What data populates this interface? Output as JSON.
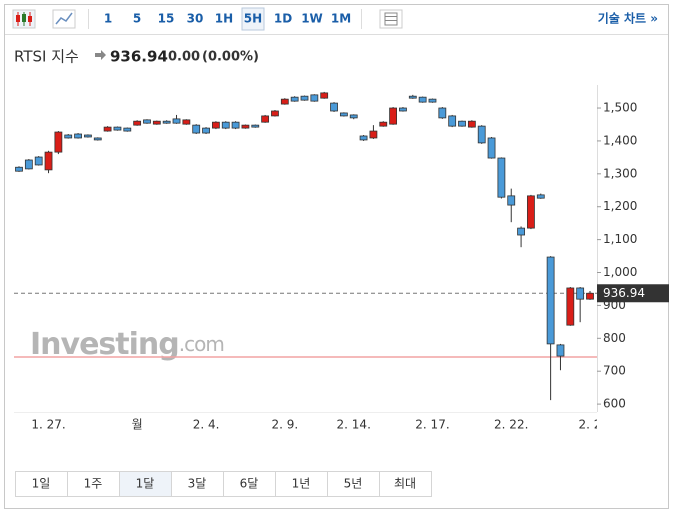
{
  "toolbar": {
    "intervals": [
      "1",
      "5",
      "15",
      "30",
      "1H",
      "5H",
      "1D",
      "1W",
      "1M"
    ],
    "selected": "5H",
    "link": "기술 차트 »"
  },
  "header": {
    "name": "RTSI 지수",
    "change": "0.00",
    "change_percent": "(0.00%)"
  },
  "watermark": [
    "Investing",
    ".com"
  ],
  "ranges": {
    "items": [
      "1일",
      "1주",
      "1달",
      "3달",
      "6달",
      "1년",
      "5년",
      "최대"
    ],
    "selected": "1달"
  },
  "chart_data": {
    "type": "candlestick",
    "categories": [
      null,
      null,
      null,
      "1. 27.",
      null,
      null,
      null,
      null,
      null,
      null,
      null,
      null,
      "월",
      null,
      null,
      null,
      null,
      null,
      null,
      "2. 4.",
      null,
      null,
      null,
      null,
      null,
      null,
      null,
      "2. 9.",
      null,
      null,
      null,
      null,
      null,
      null,
      "2. 14.",
      null,
      null,
      null,
      null,
      null,
      null,
      null,
      "2. 17.",
      null,
      null,
      null,
      null,
      null,
      null,
      null,
      "2. 22.",
      null,
      null,
      null,
      null,
      null,
      null,
      null,
      "2. 2"
    ],
    "open": [
      1320,
      1342,
      1351,
      1312,
      1366,
      1418,
      1421,
      1418,
      1409,
      1430,
      1442,
      1439,
      1448,
      1464,
      1451,
      1460,
      1467,
      1451,
      1448,
      1439,
      1439,
      1457,
      1457,
      1439,
      1448,
      1457,
      1476,
      1512,
      1533,
      1536,
      1540,
      1530,
      1515,
      1485,
      1479,
      1415,
      1409,
      1445,
      1451,
      1500,
      1536,
      1533,
      1527,
      1500,
      1476,
      1460,
      1442,
      1445,
      1409,
      1348,
      1233,
      1135,
      1135,
      1236,
      1047,
      780,
      840,
      953,
      919
    ],
    "high": [
      1323,
      1345,
      1354,
      1370,
      1430,
      1421,
      1424,
      1420,
      1411,
      1445,
      1444,
      1441,
      1463,
      1466,
      1462,
      1463,
      1479,
      1466,
      1451,
      1442,
      1460,
      1460,
      1460,
      1450,
      1450,
      1479,
      1494,
      1530,
      1536,
      1538,
      1542,
      1549,
      1518,
      1487,
      1481,
      1418,
      1448,
      1460,
      1503,
      1503,
      1540,
      1535,
      1529,
      1503,
      1479,
      1462,
      1463,
      1448,
      1412,
      1350,
      1255,
      1140,
      1236,
      1240,
      1050,
      783,
      956,
      956,
      944
    ],
    "low": [
      1306,
      1313,
      1325,
      1302,
      1360,
      1407,
      1407,
      1410,
      1401,
      1428,
      1431,
      1428,
      1446,
      1452,
      1449,
      1452,
      1452,
      1449,
      1421,
      1421,
      1436,
      1436,
      1436,
      1437,
      1440,
      1455,
      1474,
      1510,
      1519,
      1522,
      1519,
      1528,
      1488,
      1474,
      1466,
      1400,
      1406,
      1443,
      1449,
      1489,
      1528,
      1516,
      1516,
      1467,
      1442,
      1443,
      1440,
      1391,
      1346,
      1225,
      1153,
      1077,
      1132,
      1224,
      612,
      703,
      838,
      849,
      917
    ],
    "close": [
      1308,
      1315,
      1327,
      1366,
      1427,
      1409,
      1409,
      1412,
      1403,
      1442,
      1433,
      1430,
      1460,
      1454,
      1460,
      1454,
      1454,
      1464,
      1424,
      1424,
      1457,
      1439,
      1439,
      1448,
      1442,
      1476,
      1491,
      1527,
      1521,
      1524,
      1521,
      1546,
      1491,
      1476,
      1470,
      1403,
      1430,
      1457,
      1500,
      1491,
      1530,
      1518,
      1518,
      1470,
      1445,
      1445,
      1460,
      1394,
      1348,
      1229,
      1205,
      1114,
      1233,
      1226,
      783,
      746,
      953,
      919,
      936.94
    ],
    "up_color": "#d91e18",
    "down_color": "#4a9ad8",
    "reference_line": 743,
    "ylim": [
      576,
      1570
    ],
    "yticks": [
      {
        "value": 1500,
        "label": "1,500"
      },
      {
        "value": 1400,
        "label": "1,400"
      },
      {
        "value": 1300,
        "label": "1,300"
      },
      {
        "value": 1200,
        "label": "1,200"
      },
      {
        "value": 1100,
        "label": "1,100"
      },
      {
        "value": 1000,
        "label": "1,000"
      },
      900,
      800,
      700,
      600
    ]
  }
}
